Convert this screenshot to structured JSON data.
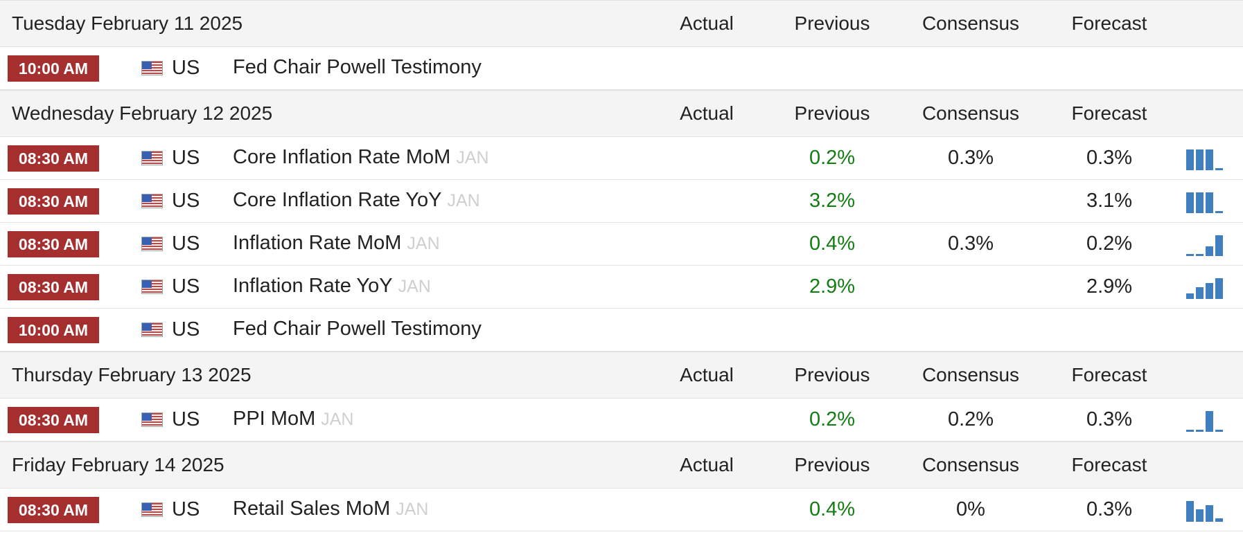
{
  "columns": {
    "actual": "Actual",
    "previous": "Previous",
    "consensus": "Consensus",
    "forecast": "Forecast"
  },
  "days": [
    {
      "date": "Tuesday February 11 2025",
      "events": [
        {
          "time": "10:00 AM",
          "country": "US",
          "flag_icon": "us-flag-icon",
          "event": "Fed Chair Powell Testimony",
          "reference": "",
          "previous": "",
          "consensus": "",
          "forecast": "",
          "sparkline": null
        }
      ]
    },
    {
      "date": "Wednesday February 12 2025",
      "events": [
        {
          "time": "08:30 AM",
          "country": "US",
          "flag_icon": "us-flag-icon",
          "event": "Core Inflation Rate MoM",
          "reference": "JAN",
          "previous": "0.2%",
          "consensus": "0.3%",
          "forecast": "0.3%",
          "sparkline": [
            1,
            1,
            1,
            0.1
          ]
        },
        {
          "time": "08:30 AM",
          "country": "US",
          "flag_icon": "us-flag-icon",
          "event": "Core Inflation Rate YoY",
          "reference": "JAN",
          "previous": "3.2%",
          "consensus": "",
          "forecast": "3.1%",
          "sparkline": [
            1,
            1,
            1,
            0.1
          ]
        },
        {
          "time": "08:30 AM",
          "country": "US",
          "flag_icon": "us-flag-icon",
          "event": "Inflation Rate MoM",
          "reference": "JAN",
          "previous": "0.4%",
          "consensus": "0.3%",
          "forecast": "0.2%",
          "sparkline": [
            0.1,
            0.1,
            0.45,
            1
          ]
        },
        {
          "time": "08:30 AM",
          "country": "US",
          "flag_icon": "us-flag-icon",
          "event": "Inflation Rate YoY",
          "reference": "JAN",
          "previous": "2.9%",
          "consensus": "",
          "forecast": "2.9%",
          "sparkline": [
            0.25,
            0.55,
            0.75,
            1
          ]
        },
        {
          "time": "10:00 AM",
          "country": "US",
          "flag_icon": "us-flag-icon",
          "event": "Fed Chair Powell Testimony",
          "reference": "",
          "previous": "",
          "consensus": "",
          "forecast": "",
          "sparkline": null
        }
      ]
    },
    {
      "date": "Thursday February 13 2025",
      "events": [
        {
          "time": "08:30 AM",
          "country": "US",
          "flag_icon": "us-flag-icon",
          "event": "PPI MoM",
          "reference": "JAN",
          "previous": "0.2%",
          "consensus": "0.2%",
          "forecast": "0.3%",
          "sparkline": [
            0.1,
            0.1,
            1,
            0.1
          ]
        }
      ]
    },
    {
      "date": "Friday February 14 2025",
      "events": [
        {
          "time": "08:30 AM",
          "country": "US",
          "flag_icon": "us-flag-icon",
          "event": "Retail Sales MoM",
          "reference": "JAN",
          "previous": "0.4%",
          "consensus": "0%",
          "forecast": "0.3%",
          "sparkline": [
            1,
            0.6,
            0.8,
            0.15
          ]
        }
      ]
    }
  ],
  "colors": {
    "time_badge": "#a52f2f",
    "previous_value": "#137c13",
    "sparkline": "#3f7fc0",
    "reference": "#cfcfcf"
  }
}
